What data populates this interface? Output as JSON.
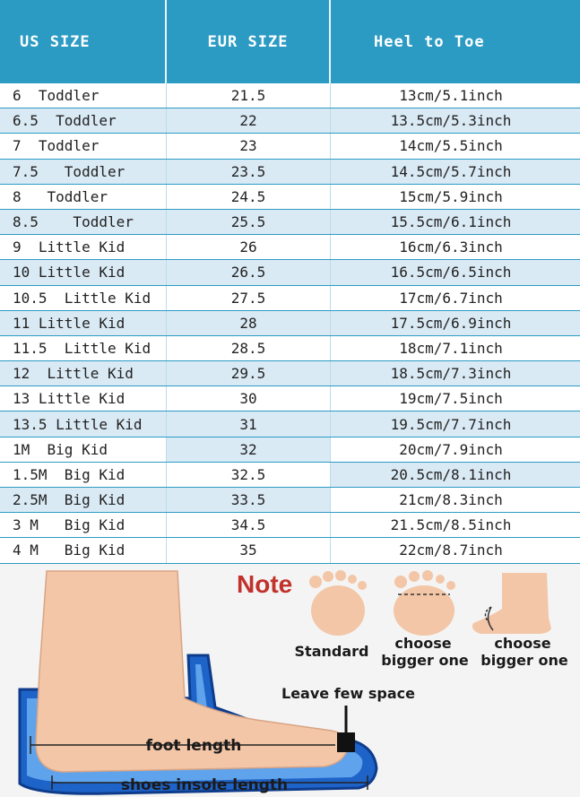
{
  "table": {
    "headers": [
      "US SIZE",
      "EUR SIZE",
      "Heel to Toe"
    ],
    "rows": [
      {
        "us": "6  Toddler",
        "eur": "21.5",
        "heel": "13cm/5.1inch",
        "c1": false,
        "c2": false,
        "c3": false
      },
      {
        "us": "6.5  Toddler",
        "eur": "22",
        "heel": "13.5cm/5.3inch",
        "c1": true,
        "c2": true,
        "c3": true
      },
      {
        "us": "7  Toddler",
        "eur": "23",
        "heel": "14cm/5.5inch",
        "c1": false,
        "c2": false,
        "c3": false
      },
      {
        "us": "7.5   Toddler",
        "eur": "23.5",
        "heel": "14.5cm/5.7inch",
        "c1": true,
        "c2": true,
        "c3": true
      },
      {
        "us": "8   Toddler",
        "eur": "24.5",
        "heel": "15cm/5.9inch",
        "c1": false,
        "c2": false,
        "c3": false
      },
      {
        "us": "8.5    Toddler",
        "eur": "25.5",
        "heel": "15.5cm/6.1inch",
        "c1": true,
        "c2": true,
        "c3": true
      },
      {
        "us": "9  Little Kid",
        "eur": "26",
        "heel": "16cm/6.3inch",
        "c1": false,
        "c2": false,
        "c3": false
      },
      {
        "us": "10 Little Kid",
        "eur": "26.5",
        "heel": "16.5cm/6.5inch",
        "c1": true,
        "c2": true,
        "c3": true
      },
      {
        "us": "10.5  Little Kid",
        "eur": "27.5",
        "heel": "17cm/6.7inch",
        "c1": false,
        "c2": false,
        "c3": false
      },
      {
        "us": "11 Little Kid",
        "eur": "28",
        "heel": "17.5cm/6.9inch",
        "c1": true,
        "c2": true,
        "c3": true
      },
      {
        "us": "11.5  Little Kid",
        "eur": "28.5",
        "heel": "18cm/7.1inch",
        "c1": false,
        "c2": false,
        "c3": false
      },
      {
        "us": "12  Little Kid",
        "eur": "29.5",
        "heel": "18.5cm/7.3inch",
        "c1": true,
        "c2": true,
        "c3": true
      },
      {
        "us": "13 Little Kid",
        "eur": "30",
        "heel": "19cm/7.5inch",
        "c1": false,
        "c2": false,
        "c3": false
      },
      {
        "us": "13.5 Little Kid",
        "eur": "31",
        "heel": "19.5cm/7.7inch",
        "c1": true,
        "c2": true,
        "c3": true
      },
      {
        "us": "1M  Big Kid",
        "eur": "32",
        "heel": "20cm/7.9inch",
        "c1": false,
        "c2": true,
        "c3": false
      },
      {
        "us": "1.5M  Big Kid",
        "eur": "32.5",
        "heel": "20.5cm/8.1inch",
        "c1": false,
        "c2": false,
        "c3": true
      },
      {
        "us": "2.5M  Big Kid",
        "eur": "33.5",
        "heel": "21cm/8.3inch",
        "c1": true,
        "c2": true,
        "c3": false
      },
      {
        "us": "3 M   Big Kid",
        "eur": "34.5",
        "heel": "21.5cm/8.5inch",
        "c1": false,
        "c2": false,
        "c3": false
      },
      {
        "us": "4 M   Big Kid",
        "eur": "35",
        "heel": "22cm/8.7inch",
        "c1": false,
        "c2": false,
        "c3": false
      }
    ]
  },
  "illustration": {
    "note": "Note",
    "standard": "Standard",
    "choose_bigger_1": [
      "choose",
      "bigger one"
    ],
    "choose_bigger_2": [
      "choose",
      "bigger one"
    ],
    "leave_space": "Leave few space",
    "foot_length": "foot length",
    "insole_length": "shoes insole length"
  },
  "colors": {
    "header_bg": "#2c9bc4",
    "row_alt": "#daeaf5",
    "note_red": "#c0322b",
    "skin": "#f2c6a6",
    "shoe_blue": "#1e63c8"
  }
}
